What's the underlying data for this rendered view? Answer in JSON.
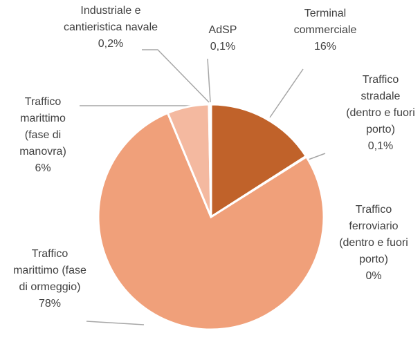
{
  "chart_data": {
    "type": "pie",
    "categories": [
      "Terminal commerciale",
      "Traffico stradale (dentro e fuori porto)",
      "Traffico ferroviario (dentro e fuori porto)",
      "Traffico marittimo (fase di ormeggio)",
      "Traffico marittimo (fase di manovra)",
      "Industriale e cantieristica navale",
      "AdSP"
    ],
    "values": [
      16,
      0.1,
      0,
      78,
      6,
      0.2,
      0.1
    ],
    "value_labels": [
      "16%",
      "0,1%",
      "0%",
      "78%",
      "6%",
      "0,2%",
      "0,1%"
    ],
    "colors": [
      "#c0622a",
      "#a8521f",
      "#d97a45",
      "#f0a07a",
      "#f4b9a0",
      "#e8906a",
      "#f7cdb8"
    ]
  }
}
